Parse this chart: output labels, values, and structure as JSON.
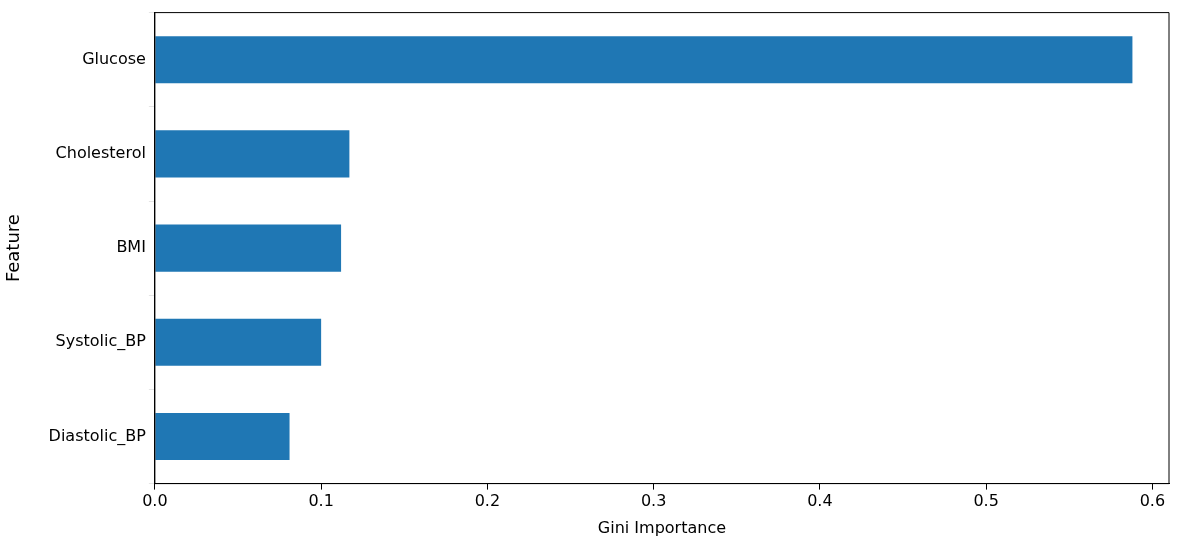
{
  "chart_data": {
    "type": "bar",
    "orientation": "horizontal",
    "xlabel": "Gini Importance",
    "ylabel": "Feature",
    "categories": [
      "Glucose",
      "Cholesterol",
      "BMI",
      "Systolic_BP",
      "Diastolic_BP"
    ],
    "values": [
      0.588,
      0.117,
      0.112,
      0.1,
      0.081
    ],
    "color": "#1f77b4",
    "xlim": [
      0,
      0.61
    ],
    "xticks": [
      {
        "value": 0,
        "label": "0.0"
      },
      0.1,
      0.2,
      0.3,
      0.4,
      0.5,
      0.6
    ],
    "grid": false,
    "legend": false
  }
}
